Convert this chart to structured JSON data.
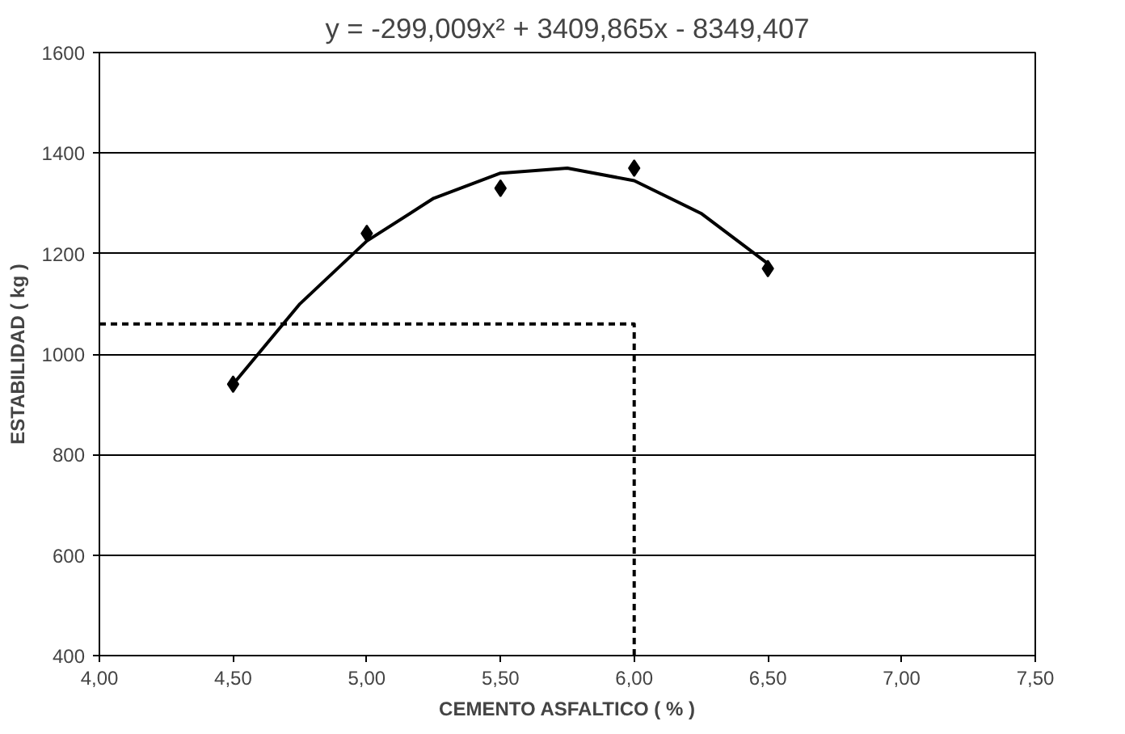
{
  "chart_data": {
    "type": "scatter",
    "title": "y = -299,009x² + 3409,865x - 8349,407",
    "xlabel": "CEMENTO ASFALTICO ( % )",
    "ylabel": "ESTABILIDAD ( kg )",
    "x": [
      4.5,
      5.0,
      5.5,
      6.0,
      6.5
    ],
    "series": [
      {
        "color": "#000000",
        "marker": "diamond",
        "values": [
          940,
          1240,
          1330,
          1370,
          1170
        ]
      },
      {
        "type": "line",
        "color": "#000000",
        "x": [
          4.5,
          4.75,
          5.0,
          5.25,
          5.5,
          5.75,
          6.0,
          6.25,
          6.5
        ],
        "values": [
          940,
          1100,
          1225,
          1310,
          1360,
          1370,
          1345,
          1280,
          1180
        ]
      },
      {
        "type": "line",
        "color": "#000000",
        "line_style": "dashed",
        "x": [
          4.0,
          6.0,
          6.0
        ],
        "values": [
          1060,
          1060,
          400
        ]
      }
    ],
    "xlim": [
      4.0,
      7.5
    ],
    "ylim": [
      400,
      1600
    ],
    "xticks": [
      {
        "value": 4.0,
        "label": "4,00"
      },
      {
        "value": 4.5,
        "label": "4,50"
      },
      {
        "value": 5.0,
        "label": "5,00"
      },
      {
        "value": 5.5,
        "label": "5,50"
      },
      {
        "value": 6.0,
        "label": "6,00"
      },
      {
        "value": 6.5,
        "label": "6,50"
      },
      {
        "value": 7.0,
        "label": "7,00"
      },
      {
        "value": 7.5,
        "label": "7,50"
      }
    ],
    "yticks": [
      400,
      600,
      800,
      1000,
      1200,
      1400,
      1600
    ],
    "grid": "y"
  }
}
